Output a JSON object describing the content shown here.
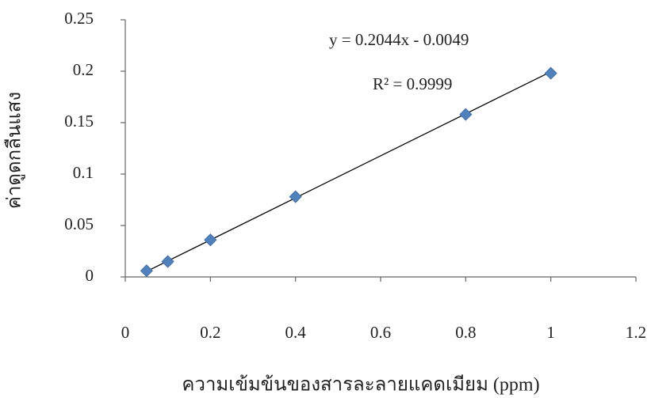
{
  "chart_data": {
    "type": "scatter",
    "x_label": "ความเข้มข้นของสารละลายแคดเมียม (ppm)",
    "y_label": "ค่าดูดกลืนแสง",
    "annotations": [
      "y = 0.2044x - 0.0049",
      "R² = 0.9999"
    ],
    "x": [
      0.05,
      0.1,
      0.2,
      0.4,
      0.8,
      1
    ],
    "series": [
      {
        "color": "#4f81bd",
        "values": [
          0.006,
          0.015,
          0.036,
          0.078,
          0.158,
          0.198
        ]
      }
    ],
    "trendline": {
      "slope": 0.2044,
      "intercept": -0.0049,
      "color": "#000000"
    },
    "xlim": [
      0,
      1.2
    ],
    "xticks": [
      0,
      0.2,
      0.4,
      0.6,
      0.8,
      1,
      1.2
    ],
    "ylim": [
      0,
      0.25
    ],
    "yticks": [
      0,
      0.05,
      0.1,
      0.15,
      0.2,
      0.25
    ]
  }
}
